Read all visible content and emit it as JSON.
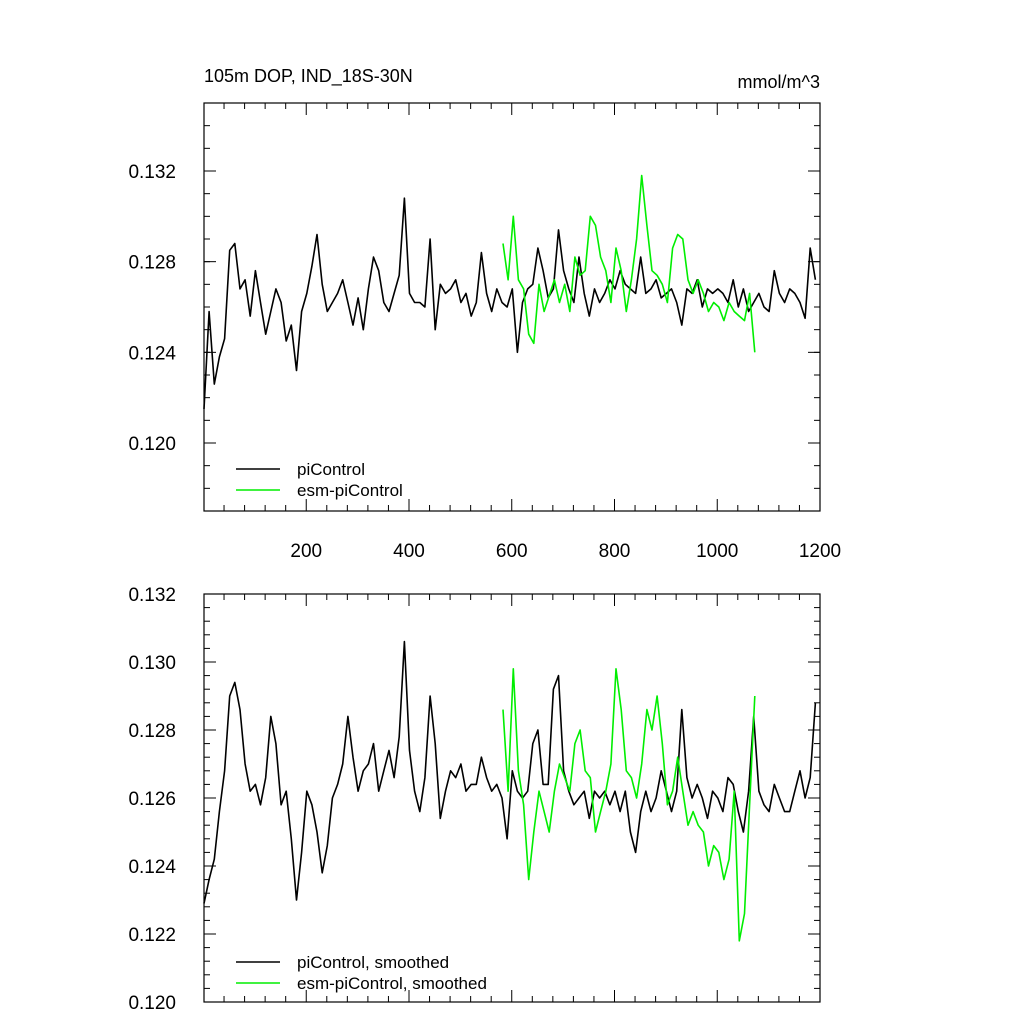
{
  "figure": {
    "title_left": "105m DOP, IND_18S-30N",
    "title_right": "mmol/m^3"
  },
  "colors": {
    "piControl": "#000000",
    "esm_piControl": "#00ee00",
    "axes": "#000000"
  },
  "chart_data": [
    {
      "type": "line",
      "panel": "top",
      "title": "105m DOP, IND_18S-30N",
      "units": "mmol/m^3",
      "xlim": [
        1,
        1200
      ],
      "ylim": [
        0.117,
        0.135
      ],
      "x_ticks": [
        200,
        400,
        600,
        800,
        1000,
        1200
      ],
      "x_tick_labels": [
        "200",
        "400",
        "600",
        "800",
        "1000",
        "1200"
      ],
      "y_ticks": [
        0.12,
        0.124,
        0.128,
        0.132
      ],
      "y_tick_labels": [
        "0.120",
        "0.124",
        "0.128",
        "0.132"
      ],
      "grid": false,
      "legend": {
        "placement": "bottom-left",
        "entries": [
          "piControl",
          "esm-piControl"
        ]
      },
      "series": [
        {
          "name": "piControl",
          "color_key": "piControl",
          "x_start": 1,
          "x_step": 10,
          "values": [
            0.1215,
            0.1258,
            0.1226,
            0.1238,
            0.1246,
            0.1285,
            0.1288,
            0.1268,
            0.1272,
            0.1256,
            0.1276,
            0.1262,
            0.1248,
            0.1258,
            0.1268,
            0.1262,
            0.1245,
            0.1252,
            0.1232,
            0.1258,
            0.1266,
            0.1278,
            0.1292,
            0.127,
            0.1258,
            0.1262,
            0.1266,
            0.1272,
            0.1262,
            0.1252,
            0.1264,
            0.125,
            0.1268,
            0.1282,
            0.1276,
            0.1262,
            0.1258,
            0.1266,
            0.1274,
            0.1308,
            0.1266,
            0.1262,
            0.1262,
            0.126,
            0.129,
            0.125,
            0.127,
            0.1266,
            0.1268,
            0.1272,
            0.1262,
            0.1266,
            0.1256,
            0.1262,
            0.1284,
            0.1266,
            0.1258,
            0.1268,
            0.1262,
            0.126,
            0.1268,
            0.124,
            0.1262,
            0.1268,
            0.127,
            0.1286,
            0.1276,
            0.1264,
            0.1268,
            0.1294,
            0.1276,
            0.1268,
            0.1262,
            0.1282,
            0.1266,
            0.1256,
            0.1268,
            0.1262,
            0.1266,
            0.1272,
            0.1268,
            0.1276,
            0.127,
            0.1268,
            0.1266,
            0.1282,
            0.1266,
            0.1268,
            0.1272,
            0.1264,
            0.1266,
            0.1268,
            0.1262,
            0.1252,
            0.1268,
            0.1266,
            0.1272,
            0.126,
            0.1268,
            0.1266,
            0.1268,
            0.1266,
            0.1262,
            0.1272,
            0.126,
            0.1268,
            0.1258,
            0.1262,
            0.1266,
            0.126,
            0.1258,
            0.1276,
            0.1266,
            0.1262,
            0.1268,
            0.1266,
            0.1262,
            0.1255,
            0.1286,
            0.1272
          ]
        },
        {
          "name": "esm-piControl",
          "color_key": "esm_piControl",
          "x_start": 583,
          "x_step": 10,
          "values": [
            0.1288,
            0.1272,
            0.13,
            0.1272,
            0.1268,
            0.1248,
            0.1244,
            0.127,
            0.1258,
            0.1265,
            0.1272,
            0.1262,
            0.127,
            0.1258,
            0.1282,
            0.1274,
            0.1276,
            0.13,
            0.1296,
            0.1282,
            0.1276,
            0.1262,
            0.1286,
            0.1276,
            0.1258,
            0.1272,
            0.129,
            0.1318,
            0.1296,
            0.1276,
            0.1274,
            0.127,
            0.1262,
            0.1286,
            0.1292,
            0.129,
            0.1272,
            0.1266,
            0.1272,
            0.1266,
            0.1258,
            0.1262,
            0.126,
            0.1254,
            0.1262,
            0.1258,
            0.1256,
            0.1254,
            0.1266,
            0.124
          ]
        }
      ]
    },
    {
      "type": "line",
      "panel": "bottom",
      "xlim": [
        1,
        1200
      ],
      "ylim": [
        0.12,
        0.132
      ],
      "x_ticks": [
        200,
        400,
        600,
        800,
        1000,
        1200
      ],
      "y_ticks": [
        0.12,
        0.122,
        0.124,
        0.126,
        0.128,
        0.13,
        0.132
      ],
      "y_tick_labels": [
        "0.120",
        "0.122",
        "0.124",
        "0.126",
        "0.128",
        "0.130",
        "0.132"
      ],
      "grid": false,
      "legend": {
        "placement": "bottom-left",
        "entries": [
          "piControl, smoothed",
          "esm-piControl, smoothed"
        ]
      },
      "series": [
        {
          "name": "piControl, smoothed",
          "color_key": "piControl",
          "x_start": 1,
          "x_step": 10,
          "values": [
            0.1229,
            0.1236,
            0.1242,
            0.1256,
            0.1268,
            0.129,
            0.1294,
            0.1286,
            0.127,
            0.1262,
            0.1264,
            0.1258,
            0.1266,
            0.1284,
            0.1276,
            0.1258,
            0.1262,
            0.1248,
            0.123,
            0.1244,
            0.1262,
            0.1258,
            0.125,
            0.1238,
            0.1246,
            0.126,
            0.1264,
            0.127,
            0.1284,
            0.1272,
            0.1262,
            0.1268,
            0.127,
            0.1276,
            0.1262,
            0.1268,
            0.1274,
            0.1266,
            0.1278,
            0.1306,
            0.1274,
            0.1262,
            0.1256,
            0.1266,
            0.129,
            0.1276,
            0.1254,
            0.1262,
            0.1268,
            0.1266,
            0.127,
            0.1262,
            0.1264,
            0.1264,
            0.1272,
            0.1266,
            0.1262,
            0.1264,
            0.126,
            0.1248,
            0.1268,
            0.1262,
            0.126,
            0.1262,
            0.1276,
            0.128,
            0.1264,
            0.1264,
            0.1292,
            0.1296,
            0.1268,
            0.1262,
            0.1258,
            0.126,
            0.1262,
            0.1254,
            0.1262,
            0.126,
            0.1262,
            0.1258,
            0.1262,
            0.1256,
            0.1262,
            0.125,
            0.1244,
            0.1256,
            0.1262,
            0.1256,
            0.126,
            0.1268,
            0.1262,
            0.1256,
            0.1262,
            0.1286,
            0.1266,
            0.126,
            0.1264,
            0.126,
            0.1254,
            0.1262,
            0.126,
            0.1256,
            0.1266,
            0.1264,
            0.1256,
            0.125,
            0.1262,
            0.1284,
            0.1262,
            0.1258,
            0.1256,
            0.1264,
            0.126,
            0.1256,
            0.1256,
            0.1262,
            0.1268,
            0.126,
            0.1266,
            0.1288
          ]
        },
        {
          "name": "esm-piControl, smoothed",
          "color_key": "esm_piControl",
          "x_start": 583,
          "x_step": 10,
          "values": [
            0.1286,
            0.1262,
            0.1298,
            0.1268,
            0.1258,
            0.1236,
            0.125,
            0.1262,
            0.1256,
            0.125,
            0.1262,
            0.127,
            0.1266,
            0.1262,
            0.1276,
            0.128,
            0.1268,
            0.1266,
            0.125,
            0.1256,
            0.1262,
            0.127,
            0.1298,
            0.1286,
            0.1268,
            0.1266,
            0.126,
            0.127,
            0.1286,
            0.128,
            0.129,
            0.1276,
            0.1258,
            0.1262,
            0.1272,
            0.1262,
            0.1252,
            0.1256,
            0.1252,
            0.125,
            0.124,
            0.1246,
            0.1244,
            0.1236,
            0.1242,
            0.1262,
            0.1218,
            0.1226,
            0.1258,
            0.129
          ]
        }
      ]
    }
  ]
}
